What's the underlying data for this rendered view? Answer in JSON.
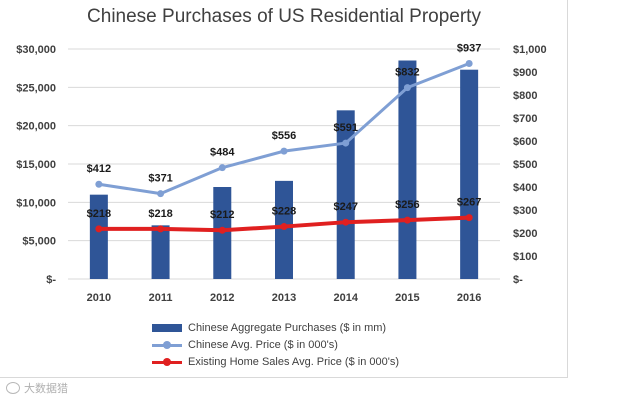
{
  "chart_data": {
    "type": "bar+line",
    "title": "Chinese Purchases of US Residential Property",
    "categories": [
      "2010",
      "2011",
      "2012",
      "2013",
      "2014",
      "2015",
      "2016"
    ],
    "left_axis": {
      "ylim": [
        0,
        30000
      ],
      "ticks": [
        30000,
        25000,
        20000,
        15000,
        10000,
        5000,
        0
      ],
      "tick_labels": [
        "$30,000",
        "$25,000",
        "$20,000",
        "$15,000",
        "$10,000",
        "$5,000",
        "$-"
      ]
    },
    "right_axis": {
      "ylim": [
        0,
        1000
      ],
      "ticks": [
        1000,
        900,
        800,
        700,
        600,
        500,
        400,
        300,
        200,
        100,
        0
      ],
      "tick_labels": [
        "$1,000",
        "$900",
        "$800",
        "$700",
        "$600",
        "$500",
        "$400",
        "$300",
        "$200",
        "$100",
        "$-"
      ]
    },
    "series": [
      {
        "name": "Chinese Aggregate Purchases ($ in mm)",
        "type": "bar",
        "axis": "left",
        "color": "#2f5597",
        "values": [
          11000,
          7000,
          12000,
          12800,
          22000,
          28500,
          27300
        ]
      },
      {
        "name": "Chinese Avg. Price ($ in 000's)",
        "type": "line",
        "axis": "right",
        "color": "#7f9fd4",
        "values": [
          412,
          371,
          484,
          556,
          591,
          832,
          937
        ],
        "labels": [
          "$412",
          "$371",
          "$484",
          "$556",
          "$591",
          "$832",
          "$937"
        ]
      },
      {
        "name": "Existing Home Sales Avg. Price ($ in 000's)",
        "type": "line",
        "axis": "right",
        "color": "#e02020",
        "values": [
          218,
          218,
          212,
          228,
          247,
          256,
          267
        ],
        "labels": [
          "$218",
          "$218",
          "$212",
          "$228",
          "$247",
          "$256",
          "$267"
        ]
      }
    ],
    "legend_position": "bottom",
    "grid": true
  },
  "watermark": {
    "text": "大数据猎"
  }
}
